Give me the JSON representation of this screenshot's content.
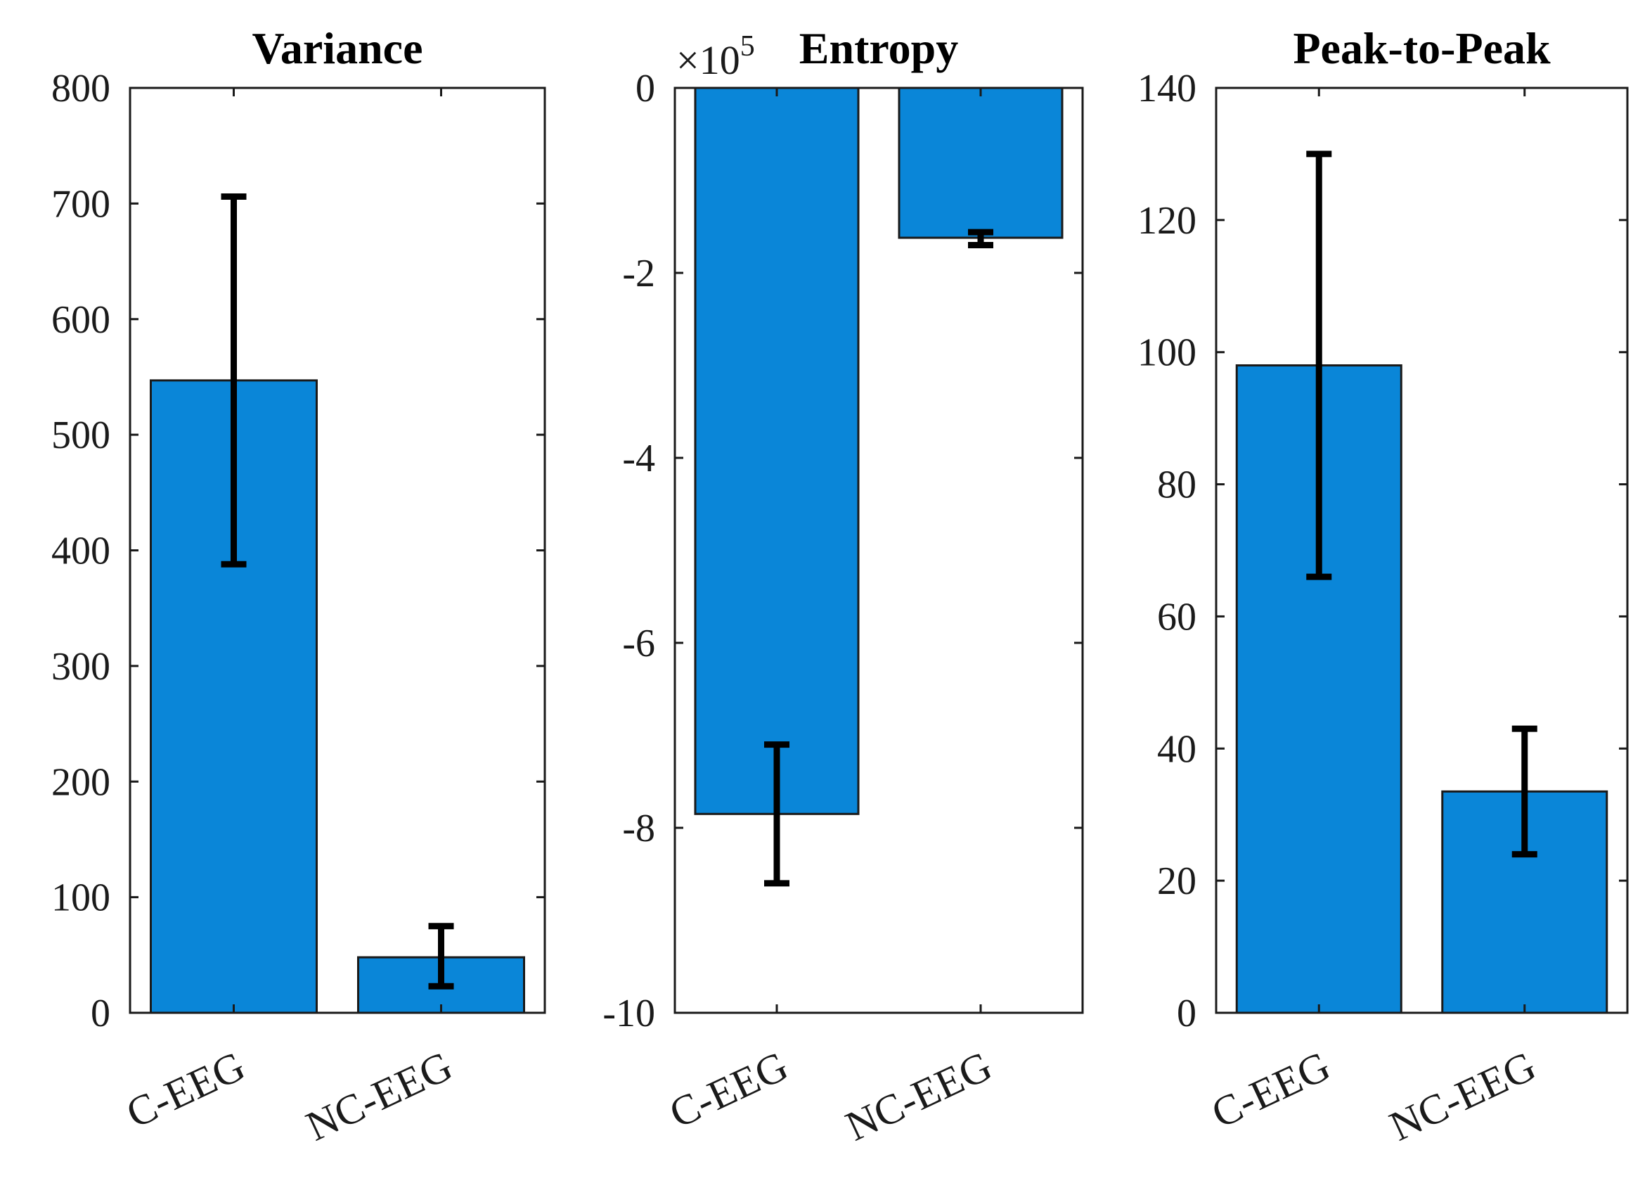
{
  "chart_data": [
    {
      "type": "bar",
      "title": "Variance",
      "categories": [
        "C-EEG",
        "NC-EEG"
      ],
      "values": [
        547,
        48
      ],
      "error_low": [
        388,
        23
      ],
      "error_high": [
        706,
        75
      ],
      "ylim": [
        0,
        800
      ],
      "yticks": [
        0,
        100,
        200,
        300,
        400,
        500,
        600,
        700,
        800
      ],
      "ytick_labels": [
        "0",
        "100",
        "200",
        "300",
        "400",
        "500",
        "600",
        "700",
        "800"
      ],
      "multiplier_label": "",
      "bar_color": "#0a86d8",
      "grid": false
    },
    {
      "type": "bar",
      "title": "Entropy",
      "categories": [
        "C-EEG",
        "NC-EEG"
      ],
      "values": [
        -7.85,
        -1.62
      ],
      "error_low": [
        -8.6,
        -1.7
      ],
      "error_high": [
        -7.1,
        -1.56
      ],
      "ylim": [
        -10,
        0
      ],
      "yticks": [
        -10,
        -8,
        -6,
        -4,
        -2,
        0
      ],
      "ytick_labels": [
        "-10",
        "-8",
        "-6",
        "-4",
        "-2",
        "0"
      ],
      "multiplier_label": "×10",
      "multiplier_exponent": "5",
      "bar_color": "#0a86d8",
      "grid": false
    },
    {
      "type": "bar",
      "title": "Peak-to-Peak",
      "categories": [
        "C-EEG",
        "NC-EEG"
      ],
      "values": [
        98,
        33.5
      ],
      "error_low": [
        66,
        24
      ],
      "error_high": [
        130,
        43
      ],
      "ylim": [
        0,
        140
      ],
      "yticks": [
        0,
        20,
        40,
        60,
        80,
        100,
        120,
        140
      ],
      "ytick_labels": [
        "0",
        "20",
        "40",
        "60",
        "80",
        "100",
        "120",
        "140"
      ],
      "multiplier_label": "",
      "bar_color": "#0a86d8",
      "grid": false
    }
  ]
}
